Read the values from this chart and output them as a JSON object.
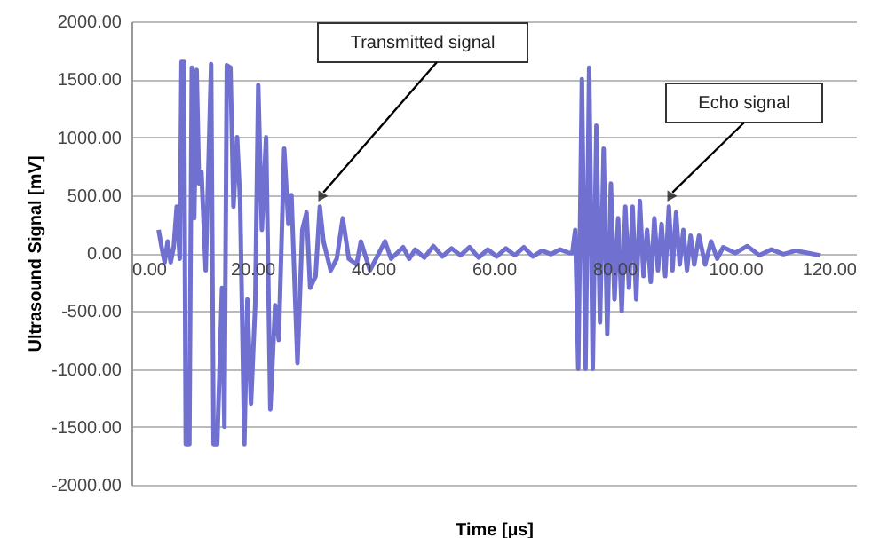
{
  "chart_data": {
    "type": "line",
    "xlabel": "Time [µs]",
    "ylabel": "Ultrasound Signal [mV]",
    "x": [
      4.5,
      5,
      5.5,
      6,
      6.5,
      7,
      7.5,
      8,
      8.3,
      8.7,
      9.0,
      9.6,
      10.0,
      10.4,
      10.8,
      11.2,
      11.6,
      12.3,
      13.2,
      13.6,
      14.2,
      14.6,
      15.0,
      15.4,
      15.8,
      16.4,
      16.9,
      17.5,
      18.0,
      18.7,
      19.2,
      19.8,
      20.5,
      21.0,
      21.6,
      22.3,
      23.0,
      23.8,
      24.4,
      25.3,
      26.0,
      26.5,
      27.5,
      28.3,
      29.0,
      29.6,
      30.5,
      31.2,
      31.8,
      33.0,
      34.0,
      35.0,
      36.0,
      37.3,
      38.0,
      39.5,
      41.0,
      42.0,
      43.0,
      44.0,
      45.0,
      46.0,
      47.0,
      48.5,
      50.0,
      51.5,
      53.0,
      54.5,
      56.0,
      57.5,
      59.0,
      60.5,
      62.0,
      63.5,
      65.0,
      66.5,
      68.0,
      69.5,
      71.0,
      72.5,
      73.0,
      73.5,
      74.0,
      74.6,
      75.2,
      75.8,
      76.4,
      77.0,
      77.6,
      78.2,
      78.8,
      79.4,
      80.0,
      80.6,
      81.2,
      81.8,
      82.4,
      83.0,
      83.6,
      84.2,
      84.8,
      85.4,
      86.0,
      86.6,
      87.2,
      87.8,
      88.4,
      89.0,
      89.6,
      90.2,
      90.8,
      91.4,
      92.0,
      92.6,
      93.2,
      94.0,
      95.0,
      96.0,
      97.0,
      98.0,
      100.0,
      102.0,
      104.0,
      106.0,
      108.0,
      110.0,
      112.0,
      114.0
    ],
    "series": [
      {
        "color": "#7070d0",
        "values": [
          200,
          50,
          -80,
          100,
          -80,
          50,
          400,
          -50,
          1650,
          1650,
          -1650,
          -1650,
          1600,
          300,
          1580,
          600,
          700,
          -150,
          1630,
          -1650,
          -1650,
          -1000,
          -300,
          -1500,
          1620,
          1600,
          400,
          1000,
          450,
          -1650,
          -400,
          -1300,
          -450,
          1450,
          200,
          1000,
          -1350,
          -450,
          -750,
          900,
          250,
          500,
          -950,
          200,
          350,
          -300,
          -200,
          400,
          100,
          -150,
          -50,
          300,
          -50,
          -100,
          100,
          -150,
          0,
          100,
          -50,
          0,
          50,
          -50,
          30,
          -40,
          60,
          -30,
          40,
          -20,
          50,
          -40,
          30,
          -30,
          40,
          -20,
          50,
          -30,
          20,
          -10,
          30,
          0,
          0,
          200,
          -1000,
          1500,
          -1000,
          1600,
          -1000,
          1100,
          -600,
          900,
          -700,
          600,
          -400,
          300,
          -500,
          400,
          -300,
          400,
          -400,
          450,
          -200,
          200,
          -250,
          300,
          -150,
          250,
          -200,
          400,
          -150,
          350,
          -100,
          200,
          -150,
          150,
          -100,
          150,
          -100,
          100,
          -50,
          50,
          0,
          60,
          -20,
          30,
          -10,
          20,
          0,
          -20
        ]
      }
    ],
    "xlim": [
      0,
      120
    ],
    "xticks": [
      {
        "value": 0,
        "label": "0.00"
      },
      {
        "value": 20,
        "label": "20.00"
      },
      {
        "value": 40,
        "label": "40.00"
      },
      {
        "value": 60,
        "label": "60.00"
      },
      {
        "value": 80,
        "label": "80.00"
      },
      {
        "value": 100,
        "label": "100.00"
      },
      {
        "value": 120,
        "label": "120.00"
      }
    ],
    "ylim": [
      -2000,
      2000
    ],
    "yticks": [
      {
        "value": -2000,
        "label": "-2000.00"
      },
      {
        "value": -1500,
        "label": "-1500.00"
      },
      {
        "value": -1000,
        "label": "-1000.00"
      },
      {
        "value": -500,
        "label": "-500.00"
      },
      {
        "value": 0,
        "label": "0.00"
      },
      {
        "value": 500,
        "label": "500.00"
      },
      {
        "value": 1000,
        "label": "1000.00"
      },
      {
        "value": 1500,
        "label": "1500.00"
      },
      {
        "value": 2000,
        "label": "2000.00"
      }
    ],
    "grid": "y",
    "marker": "none",
    "line_style": "solid",
    "annotations": [
      {
        "text": "Transmitted signal",
        "x": 31.2,
        "y": 400
      },
      {
        "text": "Echo signal",
        "x": 89.0,
        "y": 400
      }
    ]
  }
}
